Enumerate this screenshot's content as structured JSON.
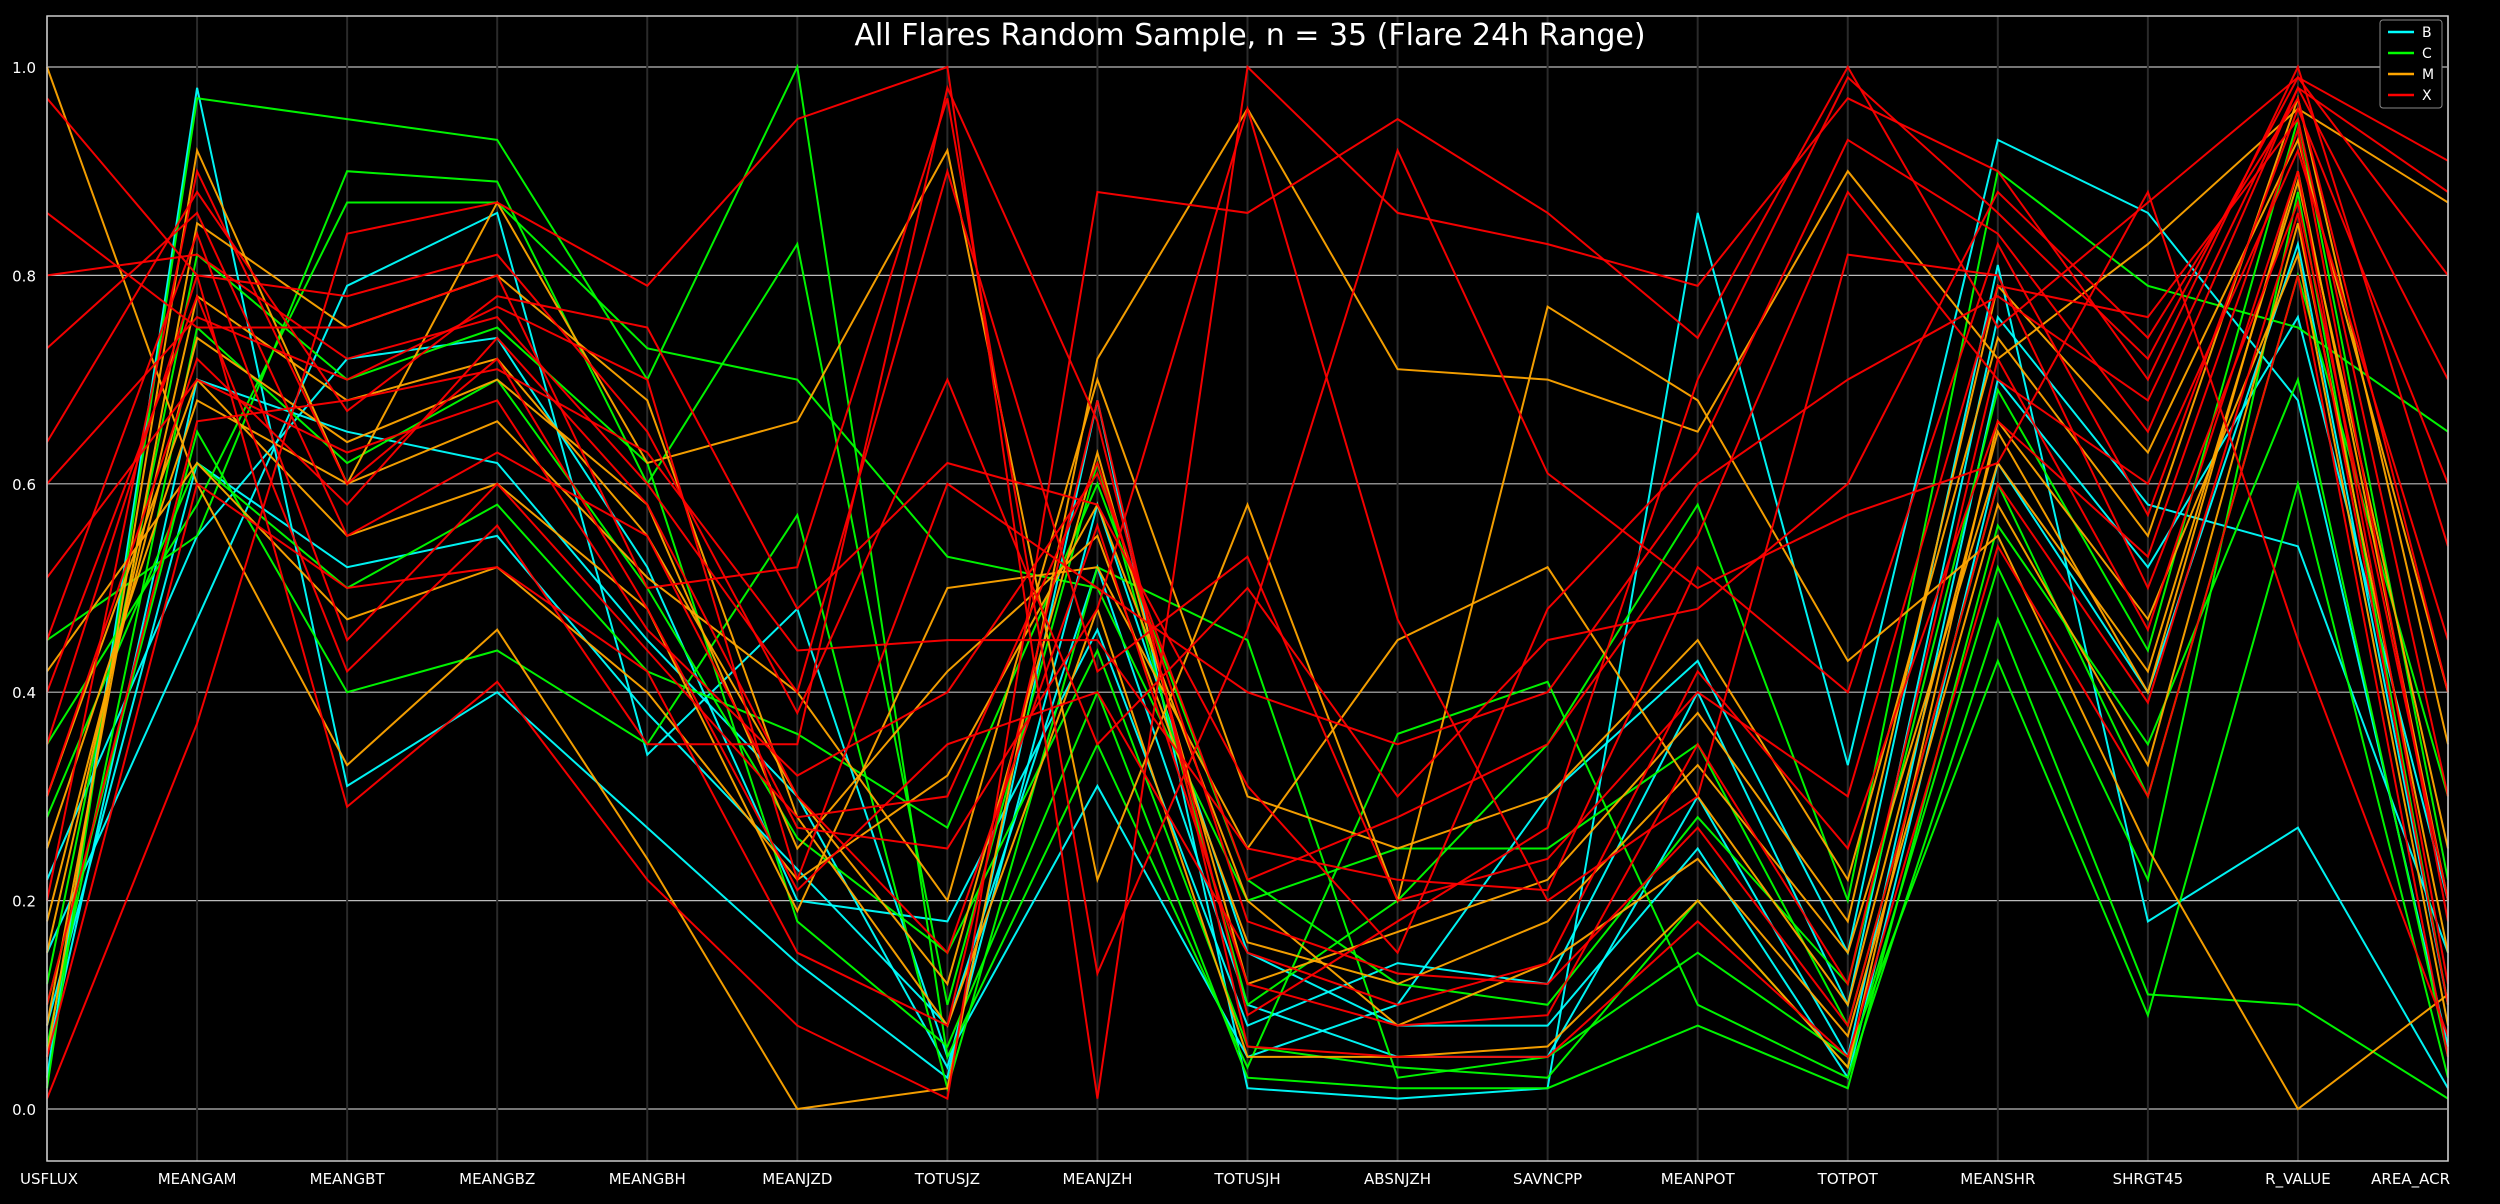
{
  "chart_data": {
    "type": "line",
    "subtype": "parallel-coordinates",
    "title": "All Flares Random Sample, n = 35 (Flare 24h Range)",
    "background": "#000000",
    "ylim": [
      0,
      1
    ],
    "y_ticks": [
      "0.0",
      "0.2",
      "0.4",
      "0.6",
      "0.8",
      "1.0"
    ],
    "y_tick_values": [
      0,
      0.2,
      0.4,
      0.6,
      0.8,
      1.0
    ],
    "grid": "horizontal",
    "legend_placement": "top-right",
    "categories": [
      "USFLUX",
      "MEANGAM",
      "MEANGBT",
      "MEANGBZ",
      "MEANGBH",
      "MEANJZD",
      "TOTUSJZ",
      "MEANJZH",
      "TOTUSJH",
      "ABSNJZH",
      "SAVNCPP",
      "MEANPOT",
      "TOTPOT",
      "MEANSHR",
      "SHRGT45",
      "R_VALUE",
      "AREA_ACR"
    ],
    "legend": [
      {
        "name": "B",
        "color": "#00ffff"
      },
      {
        "name": "C",
        "color": "#00ff00"
      },
      {
        "name": "M",
        "color": "#ffa500"
      },
      {
        "name": "X",
        "color": "#ff0000"
      }
    ],
    "series_note": "approximate representative profiles read from figure",
    "series": [
      {
        "class": "B",
        "values": [
          0.03,
          0.98,
          0.31,
          0.4,
          0.27,
          0.14,
          0.03,
          0.68,
          0.02,
          0.01,
          0.02,
          0.86,
          0.33,
          0.93,
          0.86,
          0.68,
          0.06
        ]
      },
      {
        "class": "B",
        "values": [
          0.15,
          0.47,
          0.79,
          0.86,
          0.34,
          0.48,
          0.05,
          0.31,
          0.05,
          0.1,
          0.3,
          0.43,
          0.15,
          0.81,
          0.18,
          0.27,
          0.02
        ]
      },
      {
        "class": "B",
        "values": [
          0.08,
          0.62,
          0.52,
          0.55,
          0.38,
          0.23,
          0.08,
          0.52,
          0.1,
          0.05,
          0.05,
          0.3,
          0.05,
          0.7,
          0.52,
          0.76,
          0.2
        ]
      },
      {
        "class": "B",
        "values": [
          0.05,
          0.7,
          0.65,
          0.62,
          0.45,
          0.3,
          0.04,
          0.58,
          0.15,
          0.08,
          0.08,
          0.25,
          0.03,
          0.62,
          0.4,
          0.83,
          0.1
        ]
      },
      {
        "class": "B",
        "values": [
          0.22,
          0.55,
          0.72,
          0.74,
          0.52,
          0.2,
          0.18,
          0.46,
          0.08,
          0.14,
          0.12,
          0.4,
          0.1,
          0.76,
          0.58,
          0.54,
          0.15
        ]
      },
      {
        "class": "C",
        "values": [
          0.02,
          0.97,
          0.95,
          0.93,
          0.7,
          1.0,
          0.05,
          0.35,
          0.04,
          0.36,
          0.41,
          0.1,
          0.03,
          0.47,
          0.11,
          0.1,
          0.01
        ]
      },
      {
        "class": "C",
        "values": [
          0.45,
          0.55,
          0.9,
          0.89,
          0.6,
          0.83,
          0.1,
          0.62,
          0.1,
          0.2,
          0.35,
          0.58,
          0.2,
          0.9,
          0.79,
          0.75,
          0.65
        ]
      },
      {
        "class": "C",
        "values": [
          0.1,
          0.65,
          0.4,
          0.44,
          0.35,
          0.57,
          0.02,
          0.52,
          0.45,
          0.03,
          0.05,
          0.15,
          0.05,
          0.43,
          0.09,
          0.6,
          0.03
        ]
      },
      {
        "class": "C",
        "values": [
          0.35,
          0.58,
          0.87,
          0.87,
          0.73,
          0.7,
          0.53,
          0.5,
          0.2,
          0.25,
          0.25,
          0.35,
          0.08,
          0.6,
          0.3,
          0.8,
          0.3
        ]
      },
      {
        "class": "C",
        "values": [
          0.06,
          0.75,
          0.62,
          0.7,
          0.5,
          0.26,
          0.15,
          0.44,
          0.06,
          0.04,
          0.03,
          0.2,
          0.04,
          0.52,
          0.22,
          0.88,
          0.1
        ]
      },
      {
        "class": "C",
        "values": [
          0.28,
          0.62,
          0.5,
          0.58,
          0.42,
          0.36,
          0.27,
          0.6,
          0.22,
          0.12,
          0.1,
          0.28,
          0.12,
          0.69,
          0.44,
          0.95,
          0.22
        ]
      },
      {
        "class": "C",
        "values": [
          0.12,
          0.82,
          0.7,
          0.75,
          0.62,
          0.18,
          0.06,
          0.4,
          0.03,
          0.02,
          0.02,
          0.08,
          0.02,
          0.56,
          0.35,
          0.7,
          0.05
        ]
      },
      {
        "class": "M",
        "values": [
          1.0,
          0.6,
          0.33,
          0.46,
          0.24,
          0.0,
          0.02,
          0.72,
          0.96,
          0.71,
          0.7,
          0.65,
          0.9,
          0.72,
          0.83,
          0.96,
          0.87
        ]
      },
      {
        "class": "M",
        "values": [
          0.05,
          0.92,
          0.6,
          0.87,
          0.62,
          0.66,
          0.92,
          0.22,
          0.58,
          0.2,
          0.77,
          0.68,
          0.43,
          0.55,
          0.25,
          0.0,
          0.11
        ]
      },
      {
        "class": "M",
        "values": [
          0.3,
          0.7,
          0.55,
          0.6,
          0.48,
          0.19,
          0.5,
          0.52,
          0.25,
          0.45,
          0.52,
          0.3,
          0.1,
          0.65,
          0.4,
          0.9,
          0.2
        ]
      },
      {
        "class": "M",
        "values": [
          0.15,
          0.78,
          0.68,
          0.72,
          0.55,
          0.3,
          0.12,
          0.63,
          0.12,
          0.17,
          0.22,
          0.38,
          0.18,
          0.79,
          0.63,
          0.93,
          0.4
        ]
      },
      {
        "class": "M",
        "values": [
          0.42,
          0.62,
          0.47,
          0.52,
          0.4,
          0.22,
          0.32,
          0.58,
          0.2,
          0.08,
          0.14,
          0.24,
          0.07,
          0.58,
          0.33,
          0.85,
          0.15
        ]
      },
      {
        "class": "M",
        "values": [
          0.08,
          0.85,
          0.75,
          0.8,
          0.68,
          0.28,
          0.08,
          0.48,
          0.05,
          0.05,
          0.06,
          0.2,
          0.04,
          0.66,
          0.47,
          0.82,
          0.08
        ]
      },
      {
        "class": "M",
        "values": [
          0.25,
          0.68,
          0.6,
          0.66,
          0.51,
          0.4,
          0.2,
          0.7,
          0.3,
          0.25,
          0.3,
          0.45,
          0.22,
          0.74,
          0.55,
          0.97,
          0.35
        ]
      },
      {
        "class": "M",
        "values": [
          0.18,
          0.74,
          0.64,
          0.7,
          0.58,
          0.25,
          0.42,
          0.55,
          0.16,
          0.12,
          0.18,
          0.33,
          0.15,
          0.62,
          0.42,
          0.89,
          0.25
        ]
      },
      {
        "class": "X",
        "values": [
          0.97,
          0.8,
          0.29,
          0.41,
          0.22,
          0.08,
          0.01,
          0.88,
          0.86,
          0.95,
          0.86,
          0.74,
          1.0,
          0.75,
          0.87,
          0.99,
          0.91
        ]
      },
      {
        "class": "X",
        "values": [
          0.01,
          0.37,
          0.84,
          0.87,
          0.79,
          0.95,
          1.0,
          0.01,
          1.0,
          0.86,
          0.83,
          0.79,
          0.97,
          0.9,
          0.7,
          1.0,
          0.54
        ]
      },
      {
        "class": "X",
        "values": [
          0.86,
          0.75,
          0.75,
          0.8,
          0.5,
          0.52,
          0.97,
          0.13,
          0.46,
          0.92,
          0.61,
          0.5,
          0.57,
          0.62,
          0.88,
          0.45,
          0.07
        ]
      },
      {
        "class": "X",
        "values": [
          0.64,
          0.88,
          0.67,
          0.78,
          0.75,
          0.48,
          0.62,
          0.58,
          0.31,
          0.15,
          0.48,
          0.63,
          0.93,
          0.84,
          0.65,
          0.98,
          0.88
        ]
      },
      {
        "class": "X",
        "values": [
          0.8,
          0.82,
          0.72,
          0.76,
          0.6,
          0.4,
          0.9,
          0.42,
          0.53,
          0.2,
          0.24,
          0.4,
          0.3,
          0.79,
          0.76,
          0.95,
          0.3
        ]
      },
      {
        "class": "X",
        "values": [
          0.51,
          0.7,
          0.63,
          0.68,
          0.46,
          0.32,
          0.4,
          0.61,
          0.22,
          0.28,
          0.35,
          0.55,
          0.88,
          0.7,
          0.6,
          0.92,
          0.45
        ]
      },
      {
        "class": "X",
        "values": [
          0.73,
          0.86,
          0.55,
          0.63,
          0.55,
          0.27,
          0.25,
          0.48,
          0.96,
          0.47,
          0.2,
          0.3,
          0.82,
          0.8,
          0.5,
          0.87,
          0.2
        ]
      },
      {
        "class": "X",
        "values": [
          0.4,
          0.78,
          0.42,
          0.56,
          0.35,
          0.35,
          0.98,
          0.66,
          0.09,
          0.18,
          0.27,
          0.7,
          0.99,
          0.86,
          0.72,
          0.99,
          0.8
        ]
      },
      {
        "class": "X",
        "values": [
          0.2,
          0.9,
          0.6,
          0.72,
          0.48,
          0.21,
          0.35,
          0.4,
          0.15,
          0.1,
          0.14,
          0.42,
          0.25,
          0.66,
          0.53,
          0.94,
          0.18
        ]
      },
      {
        "class": "X",
        "values": [
          0.3,
          0.72,
          0.58,
          0.74,
          0.58,
          0.3,
          0.15,
          0.56,
          0.12,
          0.08,
          0.09,
          0.35,
          0.12,
          0.72,
          0.46,
          0.9,
          0.12
        ]
      },
      {
        "class": "X",
        "values": [
          0.1,
          0.66,
          0.68,
          0.71,
          0.63,
          0.44,
          0.45,
          0.45,
          0.25,
          0.22,
          0.21,
          0.52,
          0.4,
          0.83,
          0.57,
          0.96,
          0.6
        ]
      },
      {
        "class": "X",
        "values": [
          0.45,
          0.84,
          0.45,
          0.6,
          0.44,
          0.28,
          0.3,
          0.62,
          0.18,
          0.13,
          0.12,
          0.27,
          0.08,
          0.6,
          0.39,
          0.86,
          0.1
        ]
      },
      {
        "class": "X",
        "values": [
          0.6,
          0.76,
          0.7,
          0.77,
          0.7,
          0.22,
          0.6,
          0.5,
          0.4,
          0.35,
          0.4,
          0.6,
          0.7,
          0.78,
          0.68,
          0.98,
          0.7
        ]
      },
      {
        "class": "X",
        "values": [
          0.05,
          0.6,
          0.5,
          0.52,
          0.42,
          0.15,
          0.08,
          0.68,
          0.06,
          0.05,
          0.05,
          0.18,
          0.05,
          0.54,
          0.3,
          0.8,
          0.05
        ]
      },
      {
        "class": "X",
        "values": [
          0.35,
          0.8,
          0.78,
          0.82,
          0.65,
          0.38,
          0.7,
          0.35,
          0.5,
          0.3,
          0.45,
          0.48,
          0.6,
          0.88,
          0.74,
          0.97,
          0.4
        ]
      }
    ]
  }
}
